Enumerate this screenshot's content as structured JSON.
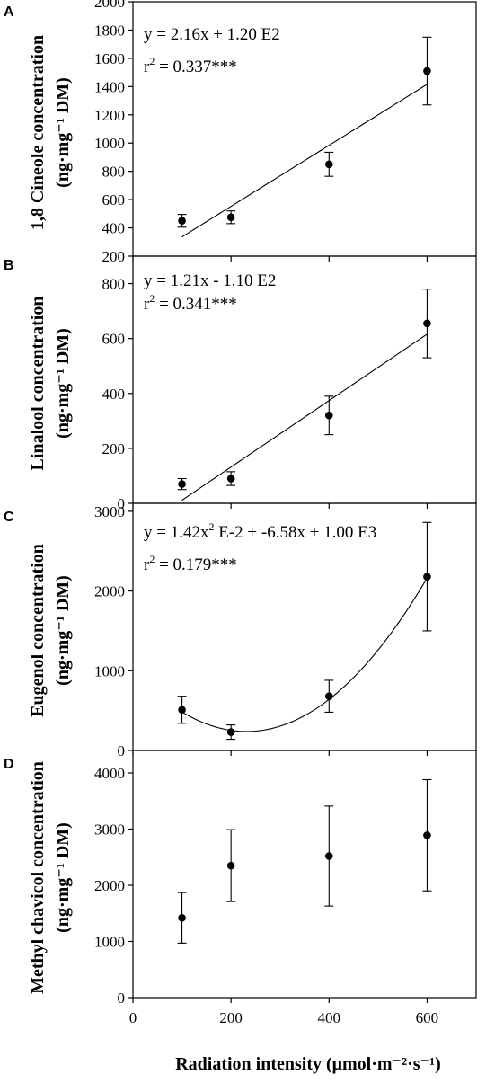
{
  "figure": {
    "x_axis_label": "Radiation intensity (μmol·m⁻²·s⁻¹)",
    "x_ticks": [
      0,
      200,
      400,
      600
    ]
  },
  "chart_data": [
    {
      "type": "scatter",
      "panel_letter": "A",
      "ylabel_line1": "1,8 Cineole concentration",
      "ylabel_line2": "(ng·mg⁻¹ DM)",
      "xlim": [
        0,
        700
      ],
      "ylim": [
        200,
        2000
      ],
      "y_ticks": [
        200,
        400,
        600,
        800,
        1000,
        1200,
        1400,
        1600,
        1800,
        2000
      ],
      "points": [
        {
          "x": 100,
          "y": 450,
          "err": 45
        },
        {
          "x": 200,
          "y": 475,
          "err": 45
        },
        {
          "x": 400,
          "y": 850,
          "err": 85
        },
        {
          "x": 600,
          "y": 1510,
          "err": 240
        }
      ],
      "fit": {
        "kind": "linear",
        "a": 2.16,
        "b": 120,
        "x_range": [
          100,
          600
        ]
      },
      "equation": "y = 2.16x + 1.20 E2",
      "r2_prefix": "r",
      "r2_sup": "2",
      "r2_value": " = 0.337***"
    },
    {
      "type": "scatter",
      "panel_letter": "B",
      "ylabel_line1": "Linalool concentration",
      "ylabel_line2": "(ng·mg⁻¹ DM)",
      "xlim": [
        0,
        700
      ],
      "ylim": [
        0,
        900
      ],
      "y_ticks": [
        0,
        200,
        400,
        600,
        800
      ],
      "points": [
        {
          "x": 100,
          "y": 70,
          "err": 20
        },
        {
          "x": 200,
          "y": 90,
          "err": 25
        },
        {
          "x": 400,
          "y": 320,
          "err": 70
        },
        {
          "x": 600,
          "y": 655,
          "err": 125
        }
      ],
      "fit": {
        "kind": "linear",
        "a": 1.21,
        "b": -110,
        "x_range": [
          100,
          600
        ]
      },
      "equation": "y = 1.21x - 1.10 E2",
      "r2_prefix": "r",
      "r2_sup": "2",
      "r2_value": " = 0.341***"
    },
    {
      "type": "scatter",
      "panel_letter": "C",
      "ylabel_line1": "Eugenol concentration",
      "ylabel_line2": "(ng·mg⁻¹ DM)",
      "xlim": [
        0,
        700
      ],
      "ylim": [
        0,
        3100
      ],
      "y_ticks": [
        0,
        1000,
        2000,
        3000
      ],
      "points": [
        {
          "x": 100,
          "y": 510,
          "err": 170
        },
        {
          "x": 200,
          "y": 230,
          "err": 90
        },
        {
          "x": 400,
          "y": 680,
          "err": 200
        },
        {
          "x": 600,
          "y": 2180,
          "err": 680
        }
      ],
      "fit": {
        "kind": "quadratic",
        "a": 0.0142,
        "b": -6.58,
        "c": 1000,
        "x_range": [
          100,
          600
        ]
      },
      "equation_main": "y = 1.42x",
      "equation_sup": "2",
      "equation_rest": " E-2 + -6.58x + 1.00 E3",
      "r2_prefix": "r",
      "r2_sup": "2",
      "r2_value": " = 0.179***"
    },
    {
      "type": "scatter",
      "panel_letter": "D",
      "ylabel_line1": "Methyl chavicol concentration",
      "ylabel_line2": "(ng·mg⁻¹ DM)",
      "xlim": [
        0,
        700
      ],
      "ylim": [
        0,
        4400
      ],
      "y_ticks": [
        0,
        1000,
        2000,
        3000,
        4000
      ],
      "points": [
        {
          "x": 100,
          "y": 1420,
          "err": 450
        },
        {
          "x": 200,
          "y": 2350,
          "err": 640
        },
        {
          "x": 400,
          "y": 2520,
          "err": 890
        },
        {
          "x": 600,
          "y": 2890,
          "err": 990
        }
      ]
    }
  ]
}
